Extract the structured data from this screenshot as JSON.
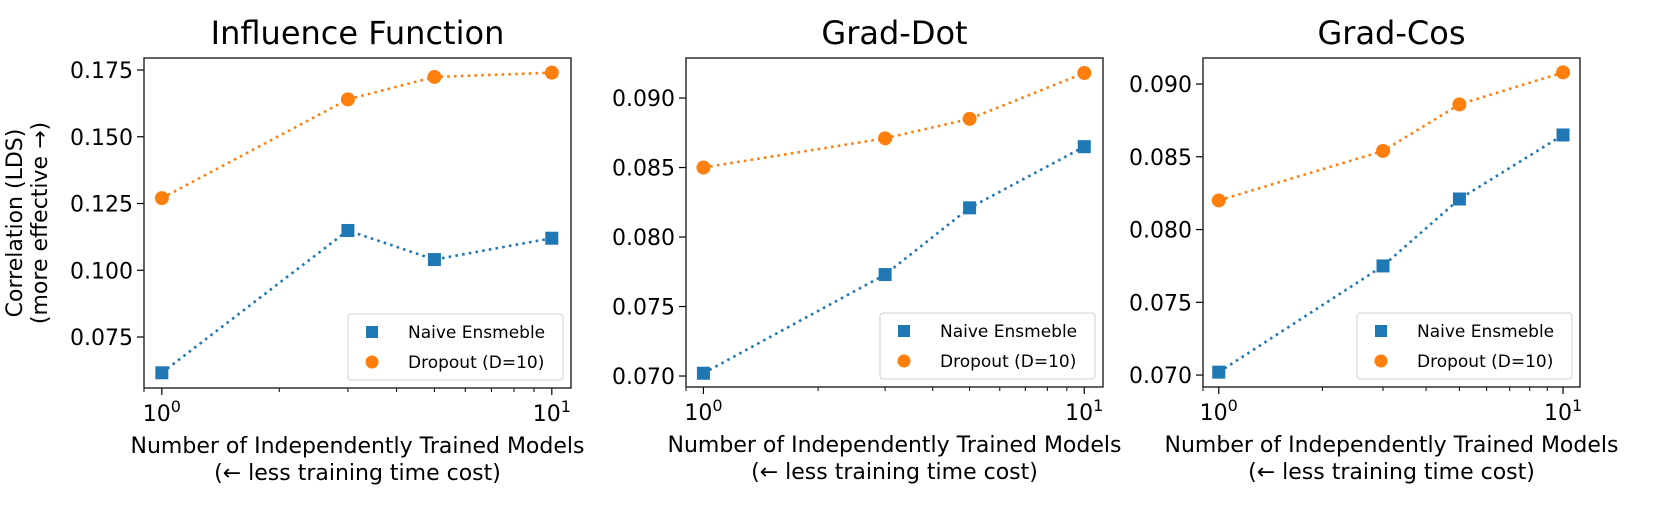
{
  "figure": {
    "ylabel_line1": "Correlation (LDS)",
    "ylabel_line2": "(more effective →)"
  },
  "colors": {
    "naive": "#1f77b4",
    "dropout": "#ff7f0e",
    "axis": "#000000"
  },
  "chart_data": [
    {
      "type": "line",
      "title": "Influence Function",
      "xlabel_line1": "Number of Independently Trained Models",
      "xlabel_line2": "(← less training time cost)",
      "ylabel": "Correlation (LDS) (more effective →)",
      "xscale": "log",
      "xlim": [
        0.9,
        11.2
      ],
      "ylim": [
        0.0559,
        0.1795
      ],
      "xticks": [
        {
          "value": 1,
          "base": "10",
          "exp": "0"
        },
        {
          "value": 10,
          "base": "10",
          "exp": "1"
        }
      ],
      "yticks": [
        {
          "value": 0.075,
          "label": "0.075"
        },
        {
          "value": 0.1,
          "label": "0.100"
        },
        {
          "value": 0.125,
          "label": "0.125"
        },
        {
          "value": 0.15,
          "label": "0.150"
        },
        {
          "value": 0.175,
          "label": "0.175"
        }
      ],
      "x": [
        1,
        3,
        5,
        10
      ],
      "series": [
        {
          "name": "Naive Ensmeble",
          "marker": "square",
          "values": [
            0.0616,
            0.1149,
            0.104,
            0.112
          ]
        },
        {
          "name": "Dropout (D=10)",
          "marker": "circle",
          "values": [
            0.127,
            0.164,
            0.1724,
            0.174
          ]
        }
      ],
      "legend": {
        "position": "lower-right",
        "entries": [
          "Naive Ensmeble",
          "Dropout (D=10)"
        ]
      },
      "grid": false
    },
    {
      "type": "line",
      "title": "Grad-Dot",
      "xlabel_line1": "Number of Independently Trained Models",
      "xlabel_line2": "(← less training time cost)",
      "ylabel": "",
      "xscale": "log",
      "xlim": [
        0.9,
        11.2
      ],
      "ylim": [
        0.06921,
        0.09288
      ],
      "xticks": [
        {
          "value": 1,
          "base": "10",
          "exp": "0"
        },
        {
          "value": 10,
          "base": "10",
          "exp": "1"
        }
      ],
      "yticks": [
        {
          "value": 0.07,
          "label": "0.070"
        },
        {
          "value": 0.075,
          "label": "0.075"
        },
        {
          "value": 0.08,
          "label": "0.080"
        },
        {
          "value": 0.085,
          "label": "0.085"
        },
        {
          "value": 0.09,
          "label": "0.090"
        }
      ],
      "x": [
        1,
        3,
        5,
        10
      ],
      "series": [
        {
          "name": "Naive Ensmeble",
          "marker": "square",
          "values": [
            0.0702,
            0.0773,
            0.0821,
            0.0865
          ]
        },
        {
          "name": "Dropout (D=10)",
          "marker": "circle",
          "values": [
            0.085,
            0.0871,
            0.0885,
            0.0918
          ]
        }
      ],
      "legend": {
        "position": "lower-right",
        "entries": [
          "Naive Ensmeble",
          "Dropout (D=10)"
        ]
      },
      "grid": false
    },
    {
      "type": "line",
      "title": "Grad-Cos",
      "xlabel_line1": "Number of Independently Trained Models",
      "xlabel_line2": "(← less training time cost)",
      "ylabel": "",
      "xscale": "log",
      "xlim": [
        0.9,
        11.2
      ],
      "ylim": [
        0.06918,
        0.09179
      ],
      "xticks": [
        {
          "value": 1,
          "base": "10",
          "exp": "0"
        },
        {
          "value": 10,
          "base": "10",
          "exp": "1"
        }
      ],
      "yticks": [
        {
          "value": 0.07,
          "label": "0.070"
        },
        {
          "value": 0.075,
          "label": "0.075"
        },
        {
          "value": 0.08,
          "label": "0.080"
        },
        {
          "value": 0.085,
          "label": "0.085"
        },
        {
          "value": 0.09,
          "label": "0.090"
        }
      ],
      "x": [
        1,
        3,
        5,
        10
      ],
      "series": [
        {
          "name": "Naive Ensmeble",
          "marker": "square",
          "values": [
            0.0702,
            0.0775,
            0.0821,
            0.0865
          ]
        },
        {
          "name": "Dropout (D=10)",
          "marker": "circle",
          "values": [
            0.082,
            0.0854,
            0.0886,
            0.0908
          ]
        }
      ],
      "legend": {
        "position": "lower-right",
        "entries": [
          "Naive Ensmeble",
          "Dropout (D=10)"
        ]
      },
      "grid": false
    }
  ]
}
